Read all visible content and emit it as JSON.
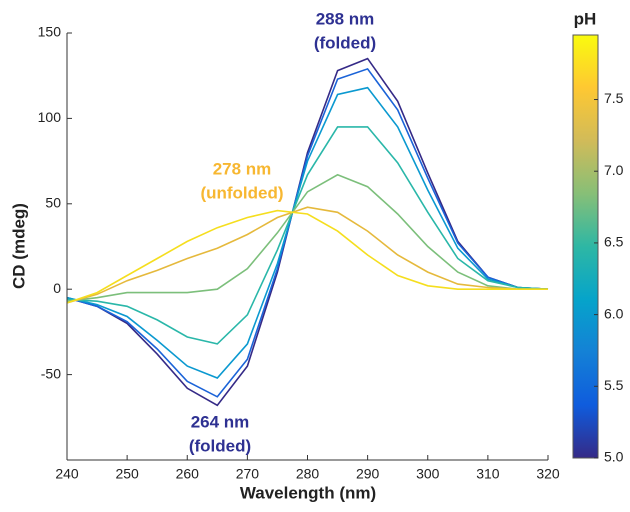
{
  "chart_data": {
    "type": "line",
    "x_label": "Wavelength (nm)",
    "y_label": "CD (mdeg)",
    "x": [
      240,
      245,
      250,
      255,
      260,
      265,
      270,
      275,
      280,
      285,
      290,
      295,
      300,
      305,
      310,
      315,
      320
    ],
    "xlim": [
      240,
      320
    ],
    "xticks": [
      240,
      250,
      260,
      270,
      280,
      290,
      300,
      310,
      320
    ],
    "ylim": [
      -100,
      150
    ],
    "yticks": [
      -50,
      0,
      50,
      100,
      150
    ],
    "series": [
      {
        "color": "#352a87",
        "values": [
          -5,
          -10,
          -20,
          -38,
          -58,
          -68,
          -45,
          10,
          80,
          128,
          135,
          110,
          68,
          28,
          7,
          1,
          0
        ]
      },
      {
        "color": "#1b63d8",
        "values": [
          -5,
          -10,
          -19,
          -35,
          -54,
          -63,
          -41,
          12,
          78,
          123,
          129,
          105,
          65,
          27,
          7,
          1,
          0
        ]
      },
      {
        "color": "#0b99d0",
        "values": [
          -5,
          -9,
          -16,
          -30,
          -45,
          -52,
          -32,
          15,
          75,
          114,
          118,
          95,
          58,
          24,
          6,
          1,
          0
        ]
      },
      {
        "color": "#2ab7a9",
        "values": [
          -6,
          -7,
          -10,
          -18,
          -28,
          -32,
          -15,
          23,
          67,
          95,
          95,
          74,
          45,
          18,
          5,
          1,
          0
        ]
      },
      {
        "color": "#7cbf7b",
        "values": [
          -7,
          -5,
          -2,
          -2,
          -2,
          0,
          12,
          33,
          57,
          67,
          60,
          44,
          25,
          10,
          2,
          0,
          0
        ]
      },
      {
        "color": "#e5b93c",
        "values": [
          -8,
          -3,
          5,
          11,
          18,
          24,
          32,
          42,
          48,
          45,
          34,
          20,
          10,
          3,
          1,
          0,
          0
        ]
      },
      {
        "color": "#f5de1e",
        "values": [
          -8,
          -2,
          8,
          18,
          28,
          36,
          42,
          46,
          44,
          34,
          20,
          8,
          2,
          0,
          0,
          0,
          0
        ]
      }
    ],
    "annotations": [
      {
        "lines": [
          "288 nm",
          "(folded)"
        ],
        "color": "#2e3192"
      },
      {
        "lines": [
          "278 nm",
          "(unfolded)"
        ],
        "color": "#f7b731"
      },
      {
        "lines": [
          "264 nm",
          "(folded)"
        ],
        "color": "#2e3192"
      }
    ],
    "colorbar": {
      "title": "pH",
      "clim": [
        5.0,
        7.95
      ],
      "ticks": [
        {
          "value": 5.0,
          "label": "5.0"
        },
        5.5,
        {
          "value": 6.0,
          "label": "6.0"
        },
        6.5,
        {
          "value": 7.0,
          "label": "7.0"
        },
        7.5
      ],
      "colormap": [
        "#352a87",
        "#0f5cdd",
        "#1481d6",
        "#06a4ca",
        "#2eb7a4",
        "#87bf77",
        "#d1bb59",
        "#fec832",
        "#f9fb0e"
      ]
    }
  }
}
